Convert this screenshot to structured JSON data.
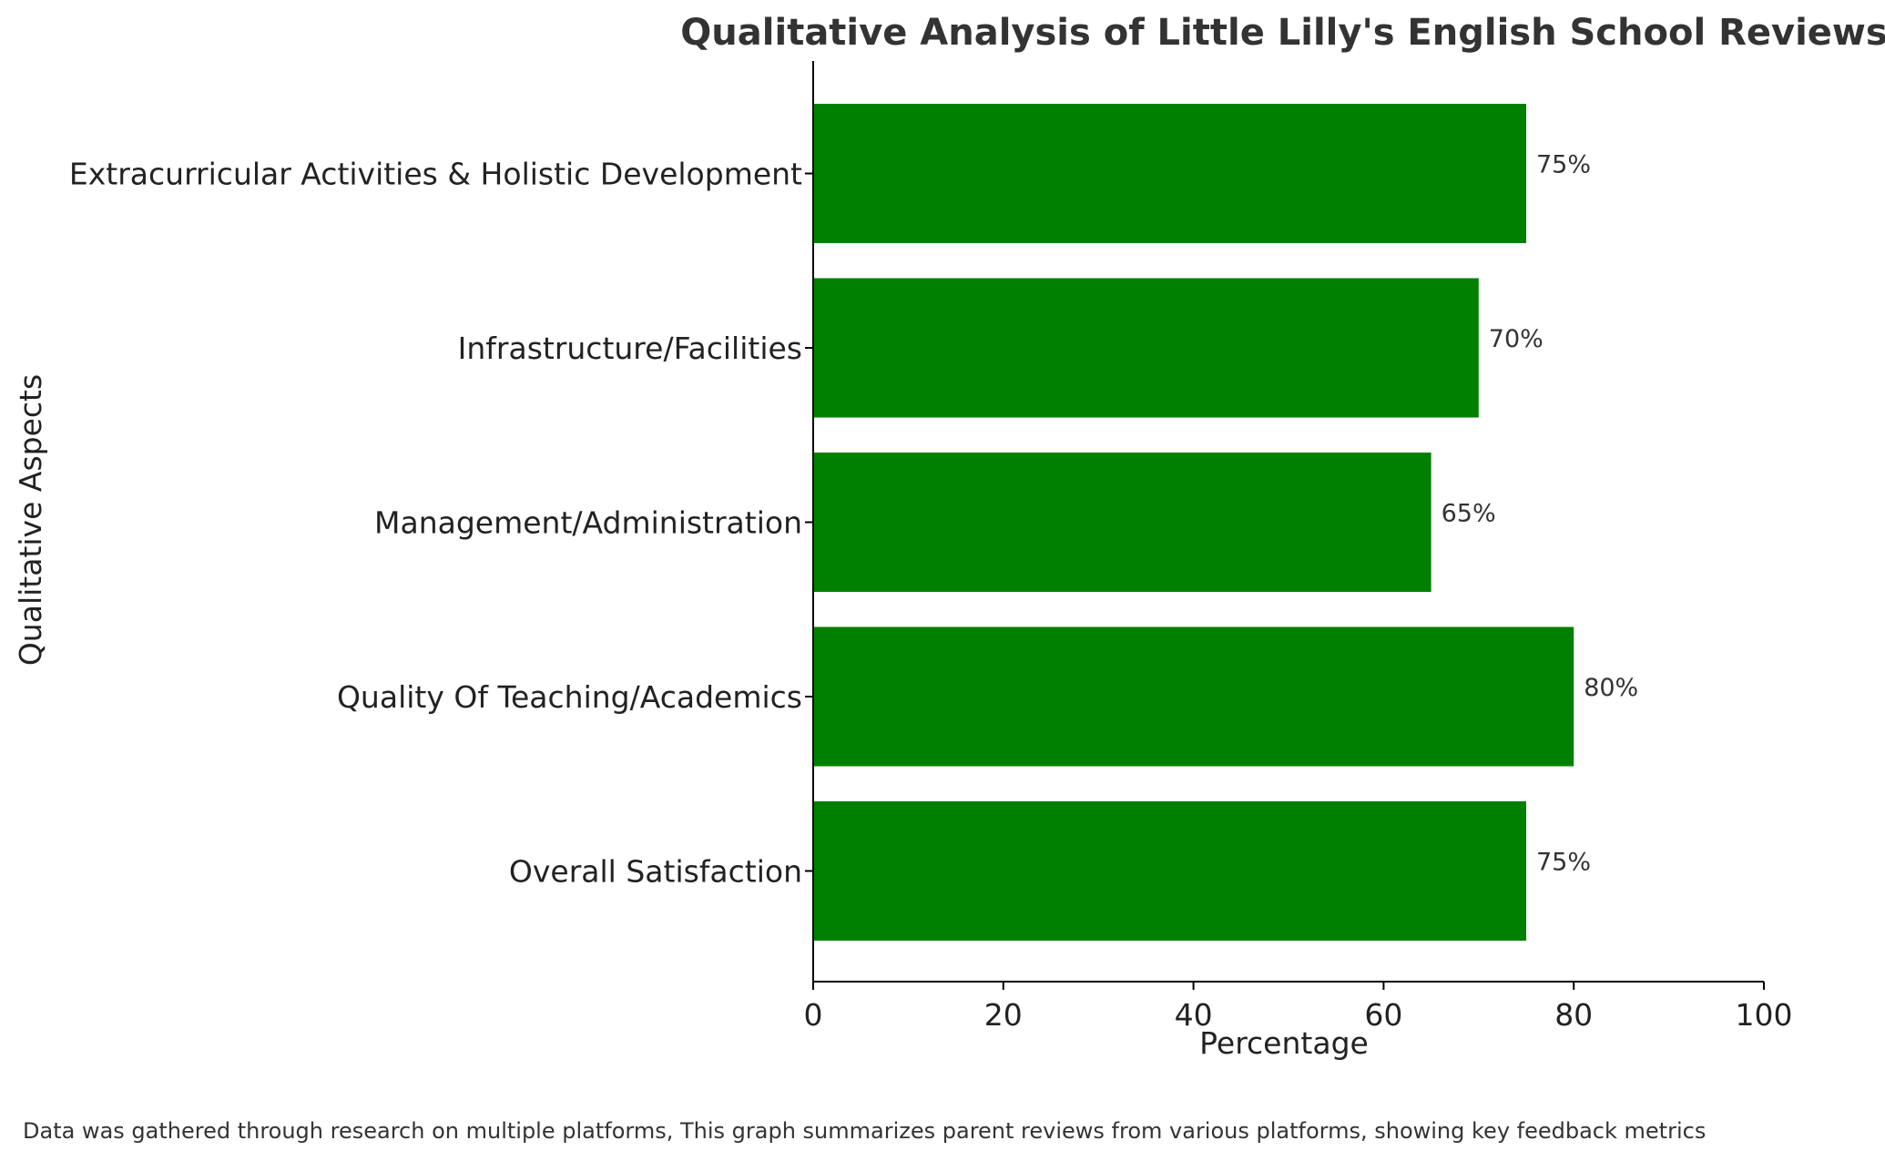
{
  "chart_data": {
    "type": "bar",
    "orientation": "horizontal",
    "title": "Qualitative Analysis of Little Lilly's English School Reviews",
    "xlabel": "Percentage",
    "ylabel": "Qualitative Aspects",
    "xlim": [
      0,
      100
    ],
    "xticks": [
      0,
      20,
      40,
      60,
      80,
      100
    ],
    "categories": [
      "Overall Satisfaction",
      "Quality Of Teaching/Academics",
      "Management/Administration",
      "Infrastructure/Facilities",
      "Extracurricular Activities & Holistic Development"
    ],
    "values": [
      75,
      80,
      65,
      70,
      75
    ],
    "data_labels": [
      "75%",
      "80%",
      "65%",
      "70%",
      "75%"
    ],
    "bar_color": "#008000",
    "grid": false
  },
  "footnote": "Data was gathered through research on multiple platforms, This graph summarizes parent reviews from various platforms, showing key feedback metrics"
}
